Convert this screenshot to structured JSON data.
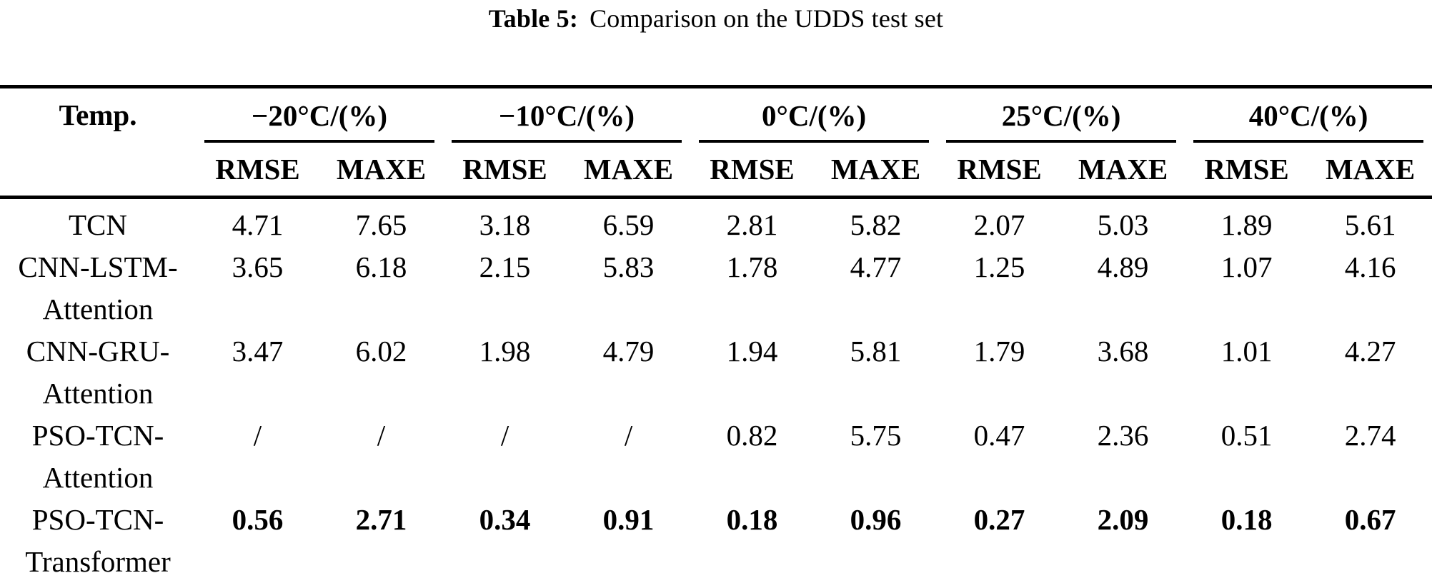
{
  "caption": {
    "label": "Table 5:",
    "text": "Comparison on the UDDS test set"
  },
  "table": {
    "corner": "Temp.",
    "groups": [
      "−20°C/(%)",
      "−10°C/(%)",
      "0°C/(%)",
      "25°C/(%)",
      "40°C/(%)"
    ],
    "subheaders": [
      "RMSE",
      "MAXE",
      "RMSE",
      "MAXE",
      "RMSE",
      "MAXE",
      "RMSE",
      "MAXE",
      "RMSE",
      "MAXE"
    ],
    "rows": [
      {
        "method": [
          "TCN"
        ],
        "values": [
          "4.71",
          "7.65",
          "3.18",
          "6.59",
          "2.81",
          "5.82",
          "2.07",
          "5.03",
          "1.89",
          "5.61"
        ]
      },
      {
        "method": [
          "CNN-LSTM-",
          "Attention"
        ],
        "values": [
          "3.65",
          "6.18",
          "2.15",
          "5.83",
          "1.78",
          "4.77",
          "1.25",
          "4.89",
          "1.07",
          "4.16"
        ]
      },
      {
        "method": [
          "CNN-GRU-",
          "Attention"
        ],
        "values": [
          "3.47",
          "6.02",
          "1.98",
          "4.79",
          "1.94",
          "5.81",
          "1.79",
          "3.68",
          "1.01",
          "4.27"
        ]
      },
      {
        "method": [
          "PSO-TCN-",
          "Attention"
        ],
        "values": [
          "/",
          "/",
          "/",
          "/",
          "0.82",
          "5.75",
          "0.47",
          "2.36",
          "0.51",
          "2.74"
        ]
      },
      {
        "method": [
          "PSO-TCN-",
          "Transformer"
        ],
        "values": [
          "0.56",
          "2.71",
          "0.34",
          "0.91",
          "0.18",
          "0.96",
          "0.27",
          "2.09",
          "0.18",
          "0.67"
        ]
      }
    ]
  },
  "colors": {
    "text": "#000000",
    "background": "#ffffff",
    "rule": "#000000"
  }
}
